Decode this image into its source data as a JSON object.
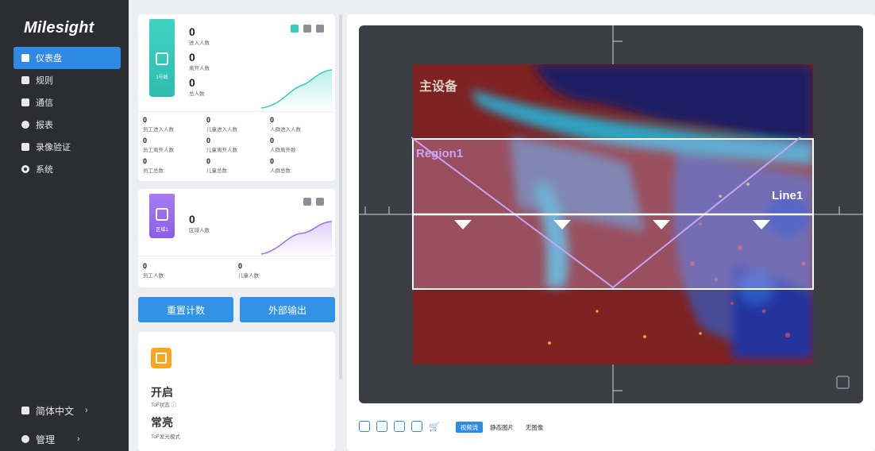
{
  "app": {
    "logo": "Milesight"
  },
  "sidebar": {
    "items": [
      {
        "label": "仪表盘",
        "icon": "dashboard-icon",
        "active": true
      },
      {
        "label": "规则",
        "icon": "rules-icon"
      },
      {
        "label": "通信",
        "icon": "communication-icon"
      },
      {
        "label": "报表",
        "icon": "report-icon"
      },
      {
        "label": "录像验证",
        "icon": "recording-icon"
      },
      {
        "label": "系统",
        "icon": "gear-icon"
      }
    ],
    "language": "简体中文",
    "admin": "管理",
    "arrow": "›"
  },
  "line_card": {
    "badge": "1号线",
    "in_value": "0",
    "in_label": "进入人数",
    "out_value": "0",
    "out_label": "离开人数",
    "total_value": "0",
    "total_label": "总人数",
    "stats": [
      {
        "value": "0",
        "label": "员工进入人数"
      },
      {
        "value": "0",
        "label": "儿童进入人数"
      },
      {
        "value": "0",
        "label": "人群进入人数"
      },
      {
        "value": "0",
        "label": "员工离开人数"
      },
      {
        "value": "0",
        "label": "儿童离开人数"
      },
      {
        "value": "0",
        "label": "人群离开数"
      },
      {
        "value": "0",
        "label": "员工总数"
      },
      {
        "value": "0",
        "label": "儿童总数"
      },
      {
        "value": "0",
        "label": "人群总数"
      }
    ]
  },
  "region_card": {
    "badge": "区域1",
    "value": "0",
    "label": "区域人数",
    "stats": [
      {
        "value": "0",
        "label": "员工人数"
      },
      {
        "value": "0",
        "label": "儿童人数"
      }
    ]
  },
  "buttons": {
    "reset": "重置计数",
    "export": "外部输出"
  },
  "tof_card": {
    "status_value": "开启",
    "status_label": "ToF状态 ⓘ",
    "light_value": "常亮",
    "light_label": "ToF发光模式"
  },
  "view": {
    "device_label": "主设备",
    "region_label": "Region1",
    "line_label": "Line1",
    "modes": [
      "视频流",
      "静态图片",
      "无图像"
    ],
    "active_mode": "视频流"
  },
  "colors": {
    "accent": "#2f8ae3",
    "sidebar_bg": "#2b2d33",
    "line_badge": "#34cbbd",
    "region_badge": "#9a6ef0"
  }
}
